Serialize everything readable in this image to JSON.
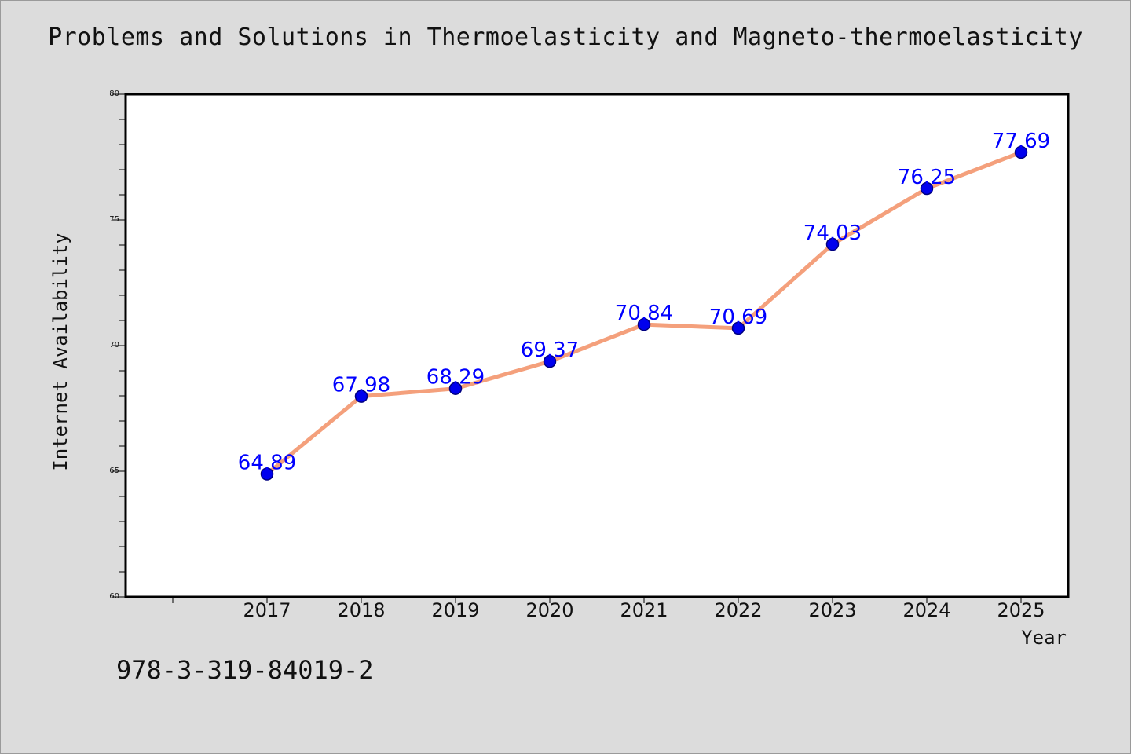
{
  "footnote": "978-3-319-84019-2",
  "colors": {
    "background": "#dcdcdc",
    "plot_background": "#ffffff",
    "line": "#f4a07c",
    "marker_fill": "#0000ee",
    "marker_edge": "#000080",
    "data_label": "#0000ff"
  },
  "chart_data": {
    "type": "line",
    "title": "Problems and Solutions in Thermoelasticity and Magneto-thermoelasticity",
    "xlabel": "Year",
    "ylabel": "Internet Availability",
    "categories": [
      "2017",
      "2018",
      "2019",
      "2020",
      "2021",
      "2022",
      "2023",
      "2024",
      "2025"
    ],
    "series": [
      {
        "values": [
          64.89,
          67.98,
          68.29,
          69.37,
          70.84,
          70.69,
          74.03,
          76.25,
          77.69
        ],
        "labels": [
          "64.89",
          "67.98",
          "68.29",
          "69.37",
          "70.84",
          "70.69",
          "74.03",
          "76.25",
          "77.69"
        ]
      }
    ],
    "ylim": [
      60,
      80
    ],
    "yticks": [
      "60",
      "65",
      "70",
      "75",
      "80"
    ],
    "grid": false,
    "legend": "none"
  }
}
